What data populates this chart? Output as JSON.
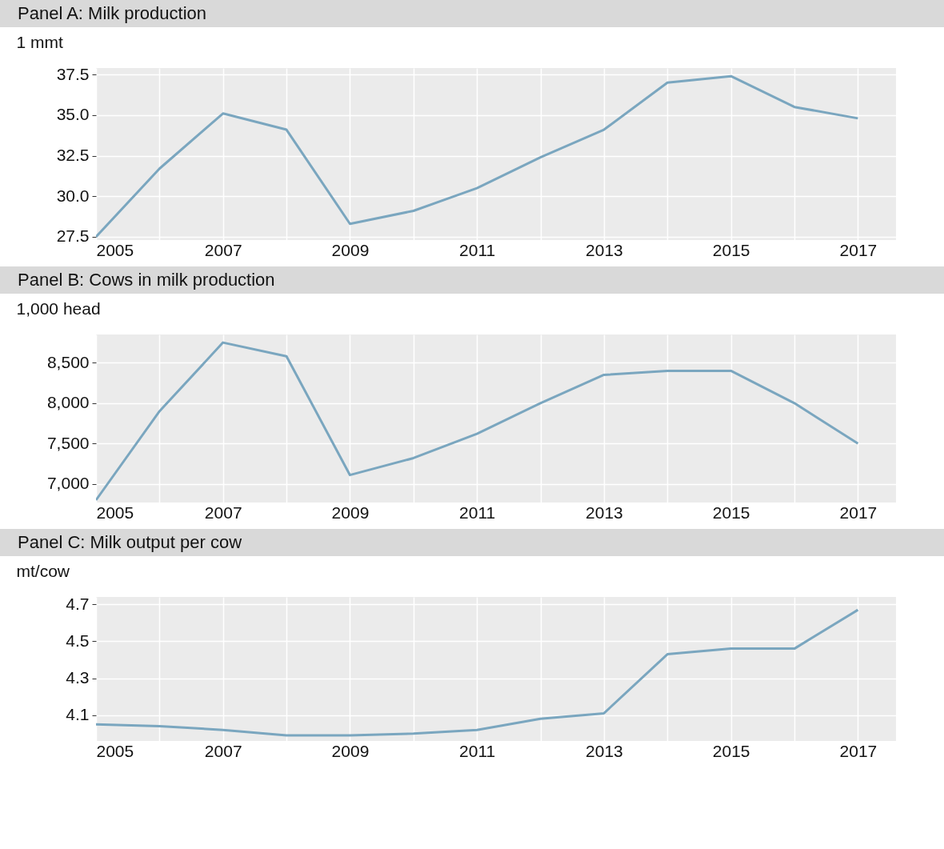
{
  "chart_data": [
    {
      "type": "line",
      "title": "Panel A: Milk production",
      "ylabel": "1 mmt",
      "x": [
        2005,
        2006,
        2007,
        2008,
        2009,
        2010,
        2011,
        2012,
        2013,
        2014,
        2015,
        2016,
        2017
      ],
      "series": [
        {
          "color": "#7aa6bf",
          "values": [
            27.5,
            31.7,
            35.1,
            34.1,
            28.3,
            29.1,
            30.5,
            32.4,
            34.1,
            37.0,
            37.4,
            35.5,
            34.8
          ]
        }
      ],
      "xlim": [
        2005,
        2017.6
      ],
      "xticks": [
        2005,
        {
          "value": 2006,
          "label": null
        },
        2007,
        {
          "value": 2008,
          "label": null
        },
        2009,
        {
          "value": 2010,
          "label": null
        },
        2011,
        {
          "value": 2012,
          "label": null
        },
        2013,
        {
          "value": 2014,
          "label": null
        },
        2015,
        {
          "value": 2016,
          "label": null
        },
        2017
      ],
      "ylim": [
        27.3,
        37.9
      ],
      "yticks": [
        {
          "value": 27.5,
          "label": "27.5"
        },
        {
          "value": 30,
          "label": "30.0"
        },
        {
          "value": 32.5,
          "label": "32.5"
        },
        {
          "value": 35,
          "label": "35.0"
        },
        {
          "value": 37.5,
          "label": "37.5"
        }
      ],
      "grid": true,
      "line_style": "solid",
      "marker": "none"
    },
    {
      "type": "line",
      "title": "Panel B: Cows in milk production",
      "ylabel": "1,000 head",
      "x": [
        2005,
        2006,
        2007,
        2008,
        2009,
        2010,
        2011,
        2012,
        2013,
        2014,
        2015,
        2016,
        2017
      ],
      "series": [
        {
          "color": "#7aa6bf",
          "values": [
            6800,
            7900,
            8750,
            8580,
            7110,
            7320,
            7620,
            8000,
            8350,
            8400,
            8400,
            8000,
            7500
          ]
        }
      ],
      "xlim": [
        2005,
        2017.6
      ],
      "xticks": [
        2005,
        {
          "value": 2006,
          "label": null
        },
        2007,
        {
          "value": 2008,
          "label": null
        },
        2009,
        {
          "value": 2010,
          "label": null
        },
        2011,
        {
          "value": 2012,
          "label": null
        },
        2013,
        {
          "value": 2014,
          "label": null
        },
        2015,
        {
          "value": 2016,
          "label": null
        },
        2017
      ],
      "ylim": [
        6770,
        8850
      ],
      "yticks": [
        {
          "value": 7000,
          "label": "7,000"
        },
        {
          "value": 7500,
          "label": "7,500"
        },
        {
          "value": 8000,
          "label": "8,000"
        },
        {
          "value": 8500,
          "label": "8,500"
        }
      ],
      "grid": true,
      "line_style": "solid",
      "marker": "none"
    },
    {
      "type": "line",
      "title": "Panel C: Milk output per cow",
      "ylabel": "mt/cow",
      "x": [
        2005,
        2006,
        2007,
        2008,
        2009,
        2010,
        2011,
        2012,
        2013,
        2014,
        2015,
        2016,
        2017
      ],
      "series": [
        {
          "color": "#7aa6bf",
          "values": [
            4.05,
            4.04,
            4.02,
            3.99,
            3.99,
            4.0,
            4.02,
            4.08,
            4.11,
            4.43,
            4.46,
            4.46,
            4.67
          ]
        }
      ],
      "xlim": [
        2005,
        2017.6
      ],
      "xticks": [
        2005,
        {
          "value": 2006,
          "label": null
        },
        2007,
        {
          "value": 2008,
          "label": null
        },
        2009,
        {
          "value": 2010,
          "label": null
        },
        2011,
        {
          "value": 2012,
          "label": null
        },
        2013,
        {
          "value": 2014,
          "label": null
        },
        2015,
        {
          "value": 2016,
          "label": null
        },
        2017
      ],
      "ylim": [
        3.96,
        4.74
      ],
      "yticks": [
        4.1,
        4.3,
        4.5,
        4.7
      ],
      "grid": true,
      "line_style": "solid",
      "marker": "none"
    }
  ]
}
